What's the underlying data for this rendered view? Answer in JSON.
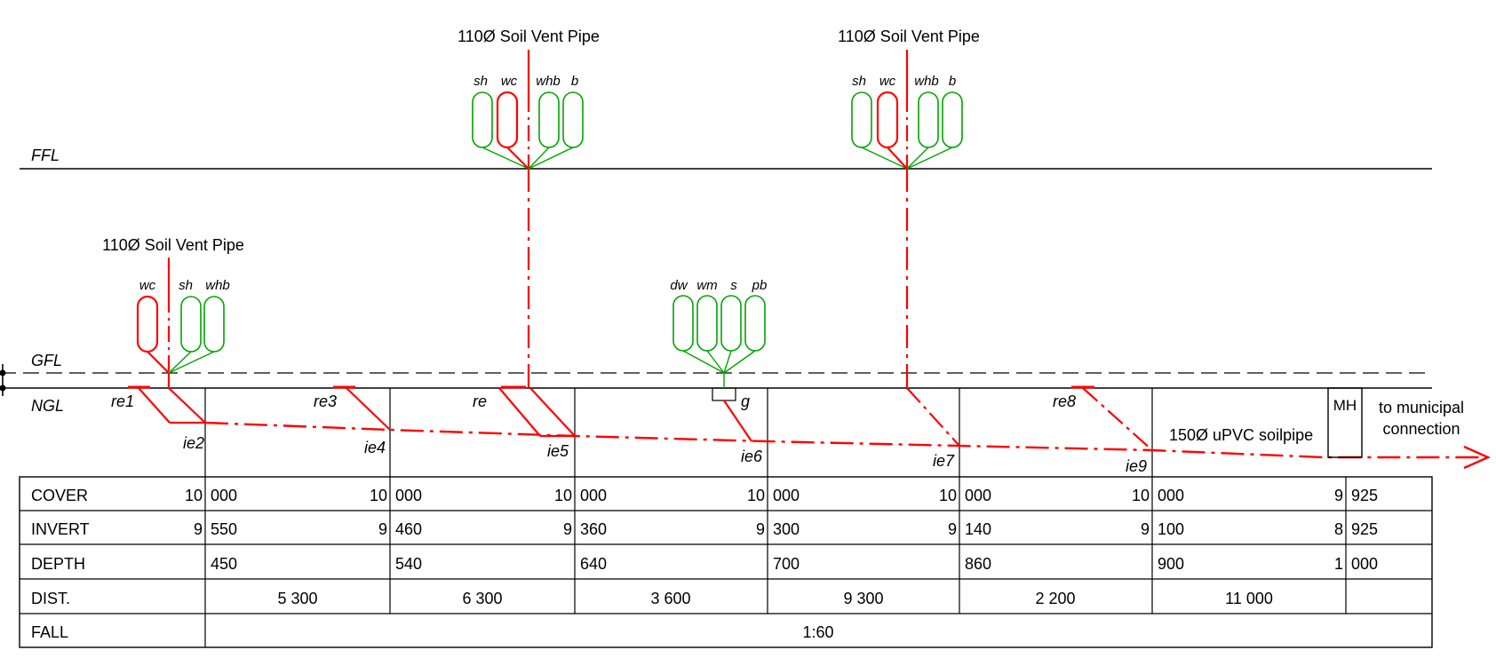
{
  "levels": {
    "ffl": "FFL",
    "gfl": "GFL",
    "ngl": "NGL"
  },
  "vents": [
    {
      "label": "110Ø Soil Vent Pipe",
      "fixtures": [
        "sh",
        "wc",
        "whb",
        "b"
      ]
    },
    {
      "label": "110Ø Soil Vent Pipe",
      "fixtures": [
        "sh",
        "wc",
        "whb",
        "b"
      ]
    },
    {
      "label": "110Ø Soil Vent Pipe",
      "fixtures": [
        "wc",
        "sh",
        "whb"
      ]
    }
  ],
  "gully_fixtures": [
    "dw",
    "wm",
    "s",
    "pb"
  ],
  "points": {
    "re1": "re1",
    "re3": "re3",
    "re": "re",
    "g": "g",
    "re8": "re8",
    "ie2": "ie2",
    "ie4": "ie4",
    "ie5": "ie5",
    "ie6": "ie6",
    "ie7": "ie7",
    "ie9": "ie9"
  },
  "pipe_label": "150Ø uPVC soilpipe",
  "manhole": "MH",
  "outlet": {
    "line1": "to municipal",
    "line2": "connection"
  },
  "colors": {
    "drain": "#ff0000",
    "fixture": "#00a400",
    "line": "#000000"
  },
  "table": {
    "rows": [
      "COVER",
      "INVERT",
      "DEPTH",
      "DIST.",
      "FALL"
    ],
    "cover": [
      {
        "left": "10",
        "right": "000"
      },
      {
        "left": "10",
        "right": "000"
      },
      {
        "left": "10",
        "right": "000"
      },
      {
        "left": "10",
        "right": "000"
      },
      {
        "left": "10",
        "right": "000"
      },
      {
        "left": "10",
        "right": "000"
      },
      {
        "left": "9",
        "right": "925"
      }
    ],
    "invert": [
      {
        "left": "9",
        "right": "550"
      },
      {
        "left": "9",
        "right": "460"
      },
      {
        "left": "9",
        "right": "360"
      },
      {
        "left": "9",
        "right": "300"
      },
      {
        "left": "9",
        "right": "140"
      },
      {
        "left": "9",
        "right": "100"
      },
      {
        "left": "8",
        "right": "925"
      }
    ],
    "depth": [
      {
        "left": "",
        "right": "450"
      },
      {
        "left": "",
        "right": "540"
      },
      {
        "left": "",
        "right": "640"
      },
      {
        "left": "",
        "right": "700"
      },
      {
        "left": "",
        "right": "860"
      },
      {
        "left": "",
        "right": "900"
      },
      {
        "left": "1",
        "right": "000"
      }
    ],
    "dist": [
      "5 300",
      "6 300",
      "3 600",
      "9 300",
      "2 200",
      "11 000"
    ],
    "fall": "1:60"
  }
}
